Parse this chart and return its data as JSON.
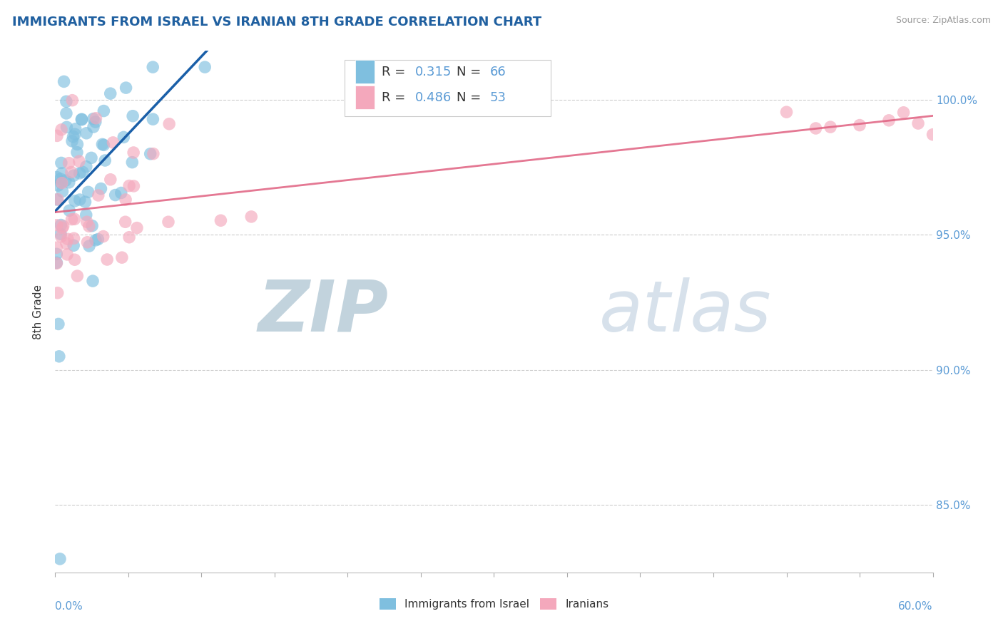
{
  "title": "IMMIGRANTS FROM ISRAEL VS IRANIAN 8TH GRADE CORRELATION CHART",
  "source_text": "Source: ZipAtlas.com",
  "ylabel": "8th Grade",
  "x_min": 0.0,
  "x_max": 60.0,
  "y_min": 82.5,
  "y_max": 101.8,
  "legend_label1": "Immigrants from Israel",
  "legend_label2": "Iranians",
  "R1": 0.315,
  "N1": 66,
  "R2": 0.486,
  "N2": 53,
  "color_israel": "#7fbfdf",
  "color_iran": "#f4a8bc",
  "color_israel_line": "#1a5fa8",
  "color_iran_line": "#e06080",
  "watermark_zip": "ZIP",
  "watermark_atlas": "atlas",
  "watermark_color": "#c8d8e8",
  "background_color": "#ffffff",
  "grid_color": "#cccccc",
  "ytick_positions": [
    85.0,
    90.0,
    95.0,
    100.0
  ],
  "ytick_labels": [
    "85.0%",
    "90.0%",
    "95.0%",
    "100.0%"
  ]
}
